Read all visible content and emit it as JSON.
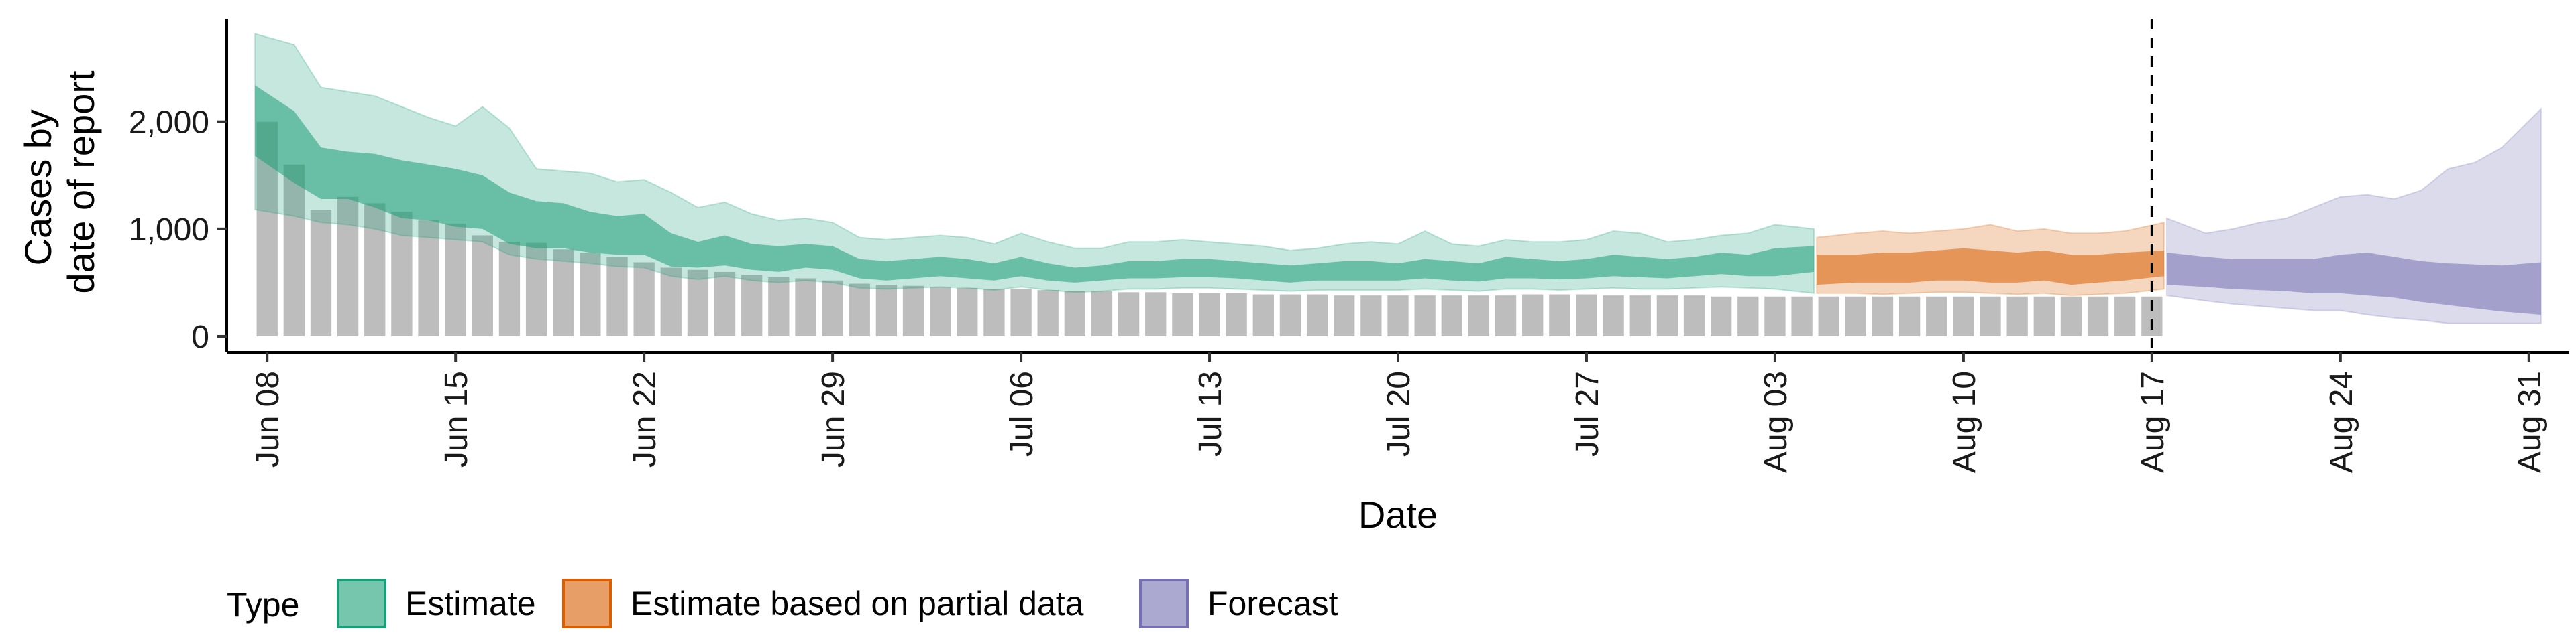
{
  "chart_data": {
    "type": "bar",
    "xlabel": "Date",
    "ylabel": [
      "Cases by",
      "date of report"
    ],
    "ylim": [
      -150,
      2960
    ],
    "yticks": [
      0,
      1000,
      2000
    ],
    "ytick_labels": [
      "0",
      "1,000",
      "2,000"
    ],
    "x_start": "2020-06-08",
    "xlim_days": [
      -1.5,
      85.5
    ],
    "xticks": [
      {
        "day": 0,
        "label": "Jun 08"
      },
      {
        "day": 7,
        "label": "Jun 15"
      },
      {
        "day": 14,
        "label": "Jun 22"
      },
      {
        "day": 21,
        "label": "Jun 29"
      },
      {
        "day": 28,
        "label": "Jul 06"
      },
      {
        "day": 35,
        "label": "Jul 13"
      },
      {
        "day": 42,
        "label": "Jul 20"
      },
      {
        "day": 49,
        "label": "Jul 27"
      },
      {
        "day": 56,
        "label": "Aug 03"
      },
      {
        "day": 63,
        "label": "Aug 10"
      },
      {
        "day": 70,
        "label": "Aug 17"
      },
      {
        "day": 77,
        "label": "Aug 24"
      },
      {
        "day": 84,
        "label": "Aug 31"
      }
    ],
    "vline_day": 70,
    "reported_cases": [
      2000,
      1600,
      1180,
      1300,
      1240,
      1160,
      1080,
      1050,
      940,
      880,
      870,
      810,
      780,
      740,
      690,
      640,
      620,
      600,
      570,
      550,
      540,
      520,
      490,
      480,
      470,
      460,
      450,
      440,
      440,
      430,
      420,
      420,
      410,
      410,
      400,
      400,
      400,
      390,
      390,
      390,
      380,
      380,
      380,
      380,
      380,
      380,
      380,
      390,
      390,
      390,
      380,
      380,
      380,
      380,
      370,
      370,
      370,
      370,
      370,
      370,
      370,
      370,
      370,
      370,
      370,
      370,
      370,
      370,
      370,
      370,
      370
    ],
    "series": [
      {
        "name": "Estimate",
        "color": "#1B9E77",
        "x_start": 0,
        "median": [
          1980,
          1550,
          1180,
          1400,
          1700,
          1480,
          1470,
          1350,
          1400,
          1050,
          1000,
          1100,
          1050,
          980,
          1050,
          870,
          780,
          870,
          770,
          720,
          790,
          750,
          620,
          580,
          640,
          650,
          620,
          580,
          660,
          560,
          520,
          560,
          600,
          600,
          640,
          640,
          600,
          560,
          540,
          560,
          560,
          560,
          540,
          580,
          560,
          540,
          620,
          600,
          580,
          600,
          660,
          640,
          600,
          620,
          660,
          620,
          660,
          680
        ],
        "lower50": [
          1680,
          1430,
          1280,
          1280,
          1200,
          1100,
          1080,
          1020,
          1000,
          860,
          820,
          820,
          780,
          760,
          760,
          650,
          640,
          660,
          620,
          600,
          640,
          620,
          540,
          520,
          540,
          560,
          540,
          520,
          560,
          520,
          500,
          520,
          540,
          540,
          550,
          550,
          540,
          520,
          500,
          520,
          520,
          520,
          520,
          540,
          520,
          510,
          540,
          540,
          530,
          540,
          560,
          550,
          540,
          560,
          580,
          560,
          560,
          600
        ],
        "upper50": [
          2340,
          2100,
          1760,
          1720,
          1700,
          1640,
          1600,
          1560,
          1500,
          1340,
          1260,
          1240,
          1160,
          1120,
          1140,
          960,
          880,
          940,
          860,
          840,
          860,
          840,
          720,
          700,
          720,
          740,
          720,
          680,
          740,
          680,
          640,
          660,
          700,
          700,
          720,
          720,
          700,
          680,
          660,
          680,
          700,
          700,
          680,
          720,
          700,
          680,
          740,
          720,
          700,
          720,
          760,
          740,
          720,
          740,
          780,
          760,
          820,
          840
        ],
        "lower90": [
          1180,
          1120,
          1060,
          1040,
          1000,
          940,
          920,
          900,
          880,
          760,
          720,
          700,
          680,
          650,
          640,
          560,
          530,
          560,
          520,
          500,
          520,
          500,
          450,
          440,
          450,
          460,
          450,
          430,
          460,
          430,
          410,
          420,
          440,
          440,
          450,
          450,
          440,
          430,
          420,
          430,
          430,
          430,
          430,
          440,
          430,
          420,
          440,
          440,
          430,
          440,
          450,
          440,
          440,
          450,
          460,
          450,
          440,
          400
        ],
        "upper90": [
          2820,
          2720,
          2320,
          2280,
          2240,
          2140,
          2040,
          1960,
          2140,
          1940,
          1560,
          1540,
          1520,
          1440,
          1460,
          1340,
          1200,
          1250,
          1140,
          1080,
          1100,
          1060,
          920,
          900,
          920,
          940,
          920,
          860,
          960,
          880,
          820,
          820,
          880,
          880,
          900,
          880,
          860,
          840,
          800,
          820,
          860,
          880,
          860,
          980,
          860,
          840,
          900,
          880,
          880,
          900,
          980,
          960,
          880,
          900,
          940,
          960,
          1040,
          1000
        ]
      },
      {
        "name": "Estimate based on partial data",
        "color": "#D95F02",
        "x_start": 58,
        "median": [
          620,
          640,
          620,
          640,
          660,
          640,
          660,
          680,
          660,
          640,
          620,
          620,
          640
        ],
        "lower50": [
          480,
          500,
          500,
          500,
          520,
          520,
          500,
          500,
          520,
          480,
          500,
          520,
          560
        ],
        "upper50": [
          760,
          760,
          780,
          780,
          800,
          820,
          800,
          780,
          800,
          760,
          760,
          780,
          800
        ],
        "lower90": [
          400,
          400,
          390,
          400,
          410,
          410,
          400,
          390,
          400,
          380,
          390,
          400,
          440
        ],
        "upper90": [
          920,
          960,
          980,
          960,
          980,
          1000,
          1040,
          980,
          1000,
          960,
          960,
          980,
          1060
        ]
      },
      {
        "name": "Forecast",
        "color": "#7570B3",
        "x_start": 71,
        "median": [
          700,
          680,
          680,
          660,
          640,
          640,
          660,
          640,
          600,
          580,
          560,
          560,
          540,
          560
        ],
        "lower50": [
          480,
          460,
          440,
          430,
          420,
          400,
          400,
          380,
          360,
          320,
          290,
          260,
          230,
          200
        ],
        "upper50": [
          780,
          740,
          720,
          720,
          720,
          720,
          760,
          780,
          740,
          700,
          680,
          670,
          660,
          690
        ],
        "lower90": [
          380,
          330,
          300,
          280,
          260,
          240,
          240,
          200,
          170,
          150,
          120,
          120,
          120,
          120
        ],
        "upper90": [
          1100,
          960,
          1000,
          1060,
          1100,
          1200,
          1300,
          1320,
          1280,
          1360,
          1560,
          1620,
          1760,
          2120
        ]
      }
    ],
    "legend": {
      "title": "Type",
      "position": "bottom-left",
      "items": [
        "Estimate",
        "Estimate based on partial data",
        "Forecast"
      ]
    },
    "bar_color": "#BDBDBD",
    "grid": false
  }
}
